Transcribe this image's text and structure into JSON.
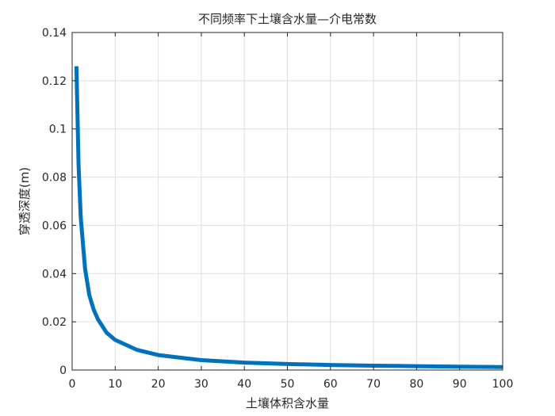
{
  "chart_data": {
    "type": "line",
    "title": "不同频率下土壤含水量—介电常数",
    "xlabel": "土壤体积含水量",
    "ylabel": "穿透深度(m)",
    "xlim": [
      0,
      100
    ],
    "ylim": [
      0,
      0.14
    ],
    "xticks": [
      0,
      10,
      20,
      30,
      40,
      50,
      60,
      70,
      80,
      90,
      100
    ],
    "yticks": [
      0,
      0.02,
      0.04,
      0.06,
      0.08,
      0.1,
      0.12,
      0.14
    ],
    "xtick_labels": [
      "0",
      "10",
      "20",
      "30",
      "40",
      "50",
      "60",
      "70",
      "80",
      "90",
      "100"
    ],
    "ytick_labels": [
      "0",
      "0.02",
      "0.04",
      "0.06",
      "0.08",
      "0.1",
      "0.12",
      "0.14"
    ],
    "grid": true,
    "box": true,
    "series": [
      {
        "color": "#0072BD",
        "x": [
          1,
          1.5,
          2,
          3,
          4,
          5,
          6,
          8,
          10,
          15,
          20,
          30,
          40,
          50,
          60,
          70,
          80,
          90,
          100
        ],
        "y": [
          0.126,
          0.085,
          0.063,
          0.042,
          0.031,
          0.025,
          0.021,
          0.0155,
          0.0125,
          0.0084,
          0.0062,
          0.0041,
          0.0031,
          0.0025,
          0.0021,
          0.0018,
          0.0016,
          0.0014,
          0.0012
        ]
      }
    ]
  }
}
